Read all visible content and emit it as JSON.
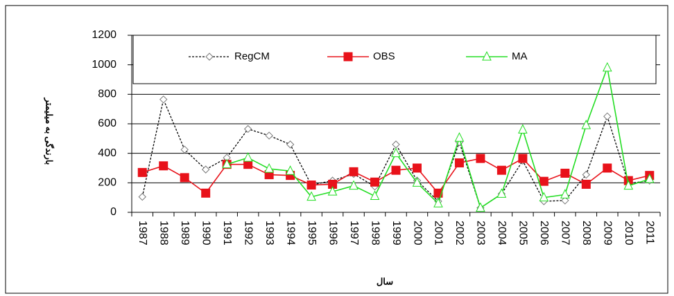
{
  "chart_data": {
    "type": "line",
    "y_label": "بارندگی به میلیمتر",
    "x_label": "سال",
    "categories": [
      "1987",
      "1988",
      "1989",
      "1990",
      "1991",
      "1992",
      "1993",
      "1994",
      "1995",
      "1996",
      "1997",
      "1998",
      "1999",
      "2000",
      "2001",
      "2002",
      "2003",
      "2004",
      "2005",
      "2006",
      "2007",
      "2008",
      "2009",
      "2010",
      "2011"
    ],
    "series": [
      {
        "name": "RegCM",
        "color": "#000000",
        "marker": "diamond",
        "dashed": true,
        "values": [
          105,
          765,
          425,
          290,
          370,
          565,
          520,
          460,
          185,
          215,
          260,
          175,
          460,
          215,
          75,
          475,
          30,
          125,
          350,
          75,
          80,
          255,
          650,
          195,
          215
        ]
      },
      {
        "name": "OBS",
        "color": "#e8121a",
        "marker": "square",
        "dashed": false,
        "values": [
          270,
          315,
          235,
          130,
          325,
          325,
          255,
          250,
          185,
          190,
          275,
          205,
          285,
          300,
          130,
          335,
          365,
          285,
          365,
          210,
          265,
          190,
          300,
          215,
          250
        ]
      },
      {
        "name": "MA",
        "color": "#22dd22",
        "marker": "triangle",
        "dashed": false,
        "values": [
          null,
          null,
          null,
          null,
          325,
          370,
          295,
          280,
          105,
          140,
          180,
          110,
          400,
          200,
          60,
          505,
          30,
          125,
          560,
          100,
          120,
          590,
          980,
          180,
          225
        ]
      }
    ],
    "ylim": [
      0,
      1200
    ],
    "yticks": [
      0,
      200,
      400,
      600,
      800,
      1000,
      1200
    ],
    "grid": true,
    "legend": "top"
  }
}
